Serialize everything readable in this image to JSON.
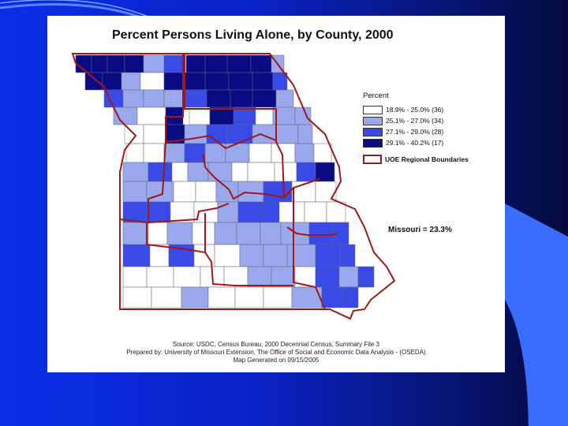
{
  "title": "Percent Persons Living Alone, by County, 2000",
  "legend": {
    "heading": "Percent",
    "classes": [
      {
        "label": "18.9% - 25.0% (36)",
        "color": "#ffffff"
      },
      {
        "label": "25.1% - 27.0% (34)",
        "color": "#9aa8ee"
      },
      {
        "label": "27.1% - 29.0% (28)",
        "color": "#3a4ae6"
      },
      {
        "label": "29.1% - 40.2% (17)",
        "color": "#0a0a82"
      }
    ],
    "boundary_label": "UOE Regional Boundaries",
    "boundary_color": "#a01818"
  },
  "state_total": "Missouri = 23.3%",
  "source": [
    "Source: USDC, Census Bureau, 2000 Decennial Census, Summary File 3",
    "Prepared by: University of Missouri Extension, The Office of Social and Economic Data Analysis - (OSEDA)",
    "Map Generated on 09/15/2005"
  ],
  "colors": {
    "accent_light_blue": "#4a78ff",
    "background_blue": "#0a2ee6",
    "county_border": "#555555"
  }
}
